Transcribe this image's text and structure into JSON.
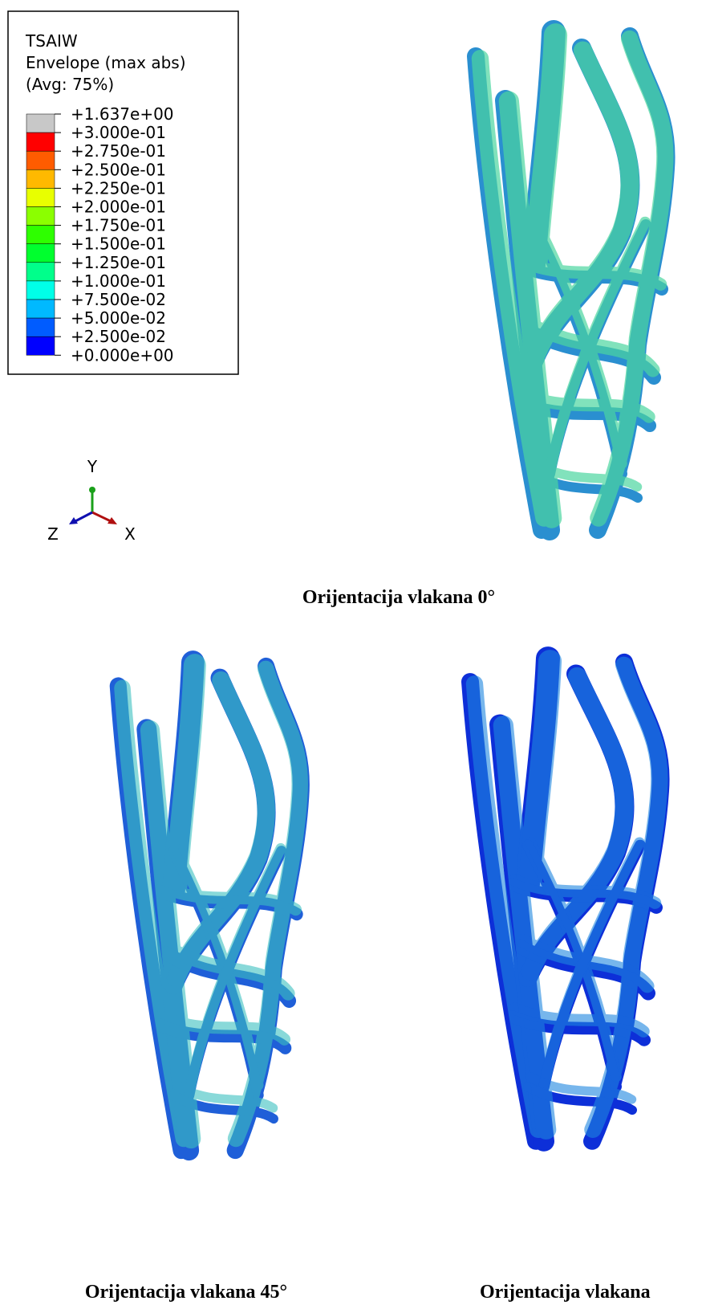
{
  "legend": {
    "title_lines": [
      "TSAIW",
      "Envelope (max abs)",
      "(Avg: 75%)"
    ],
    "labels": [
      "+1.637e+00",
      "+3.000e-01",
      "+2.750e-01",
      "+2.500e-01",
      "+2.250e-01",
      "+2.000e-01",
      "+1.750e-01",
      "+1.500e-01",
      "+1.250e-01",
      "+1.000e-01",
      "+7.500e-02",
      "+5.000e-02",
      "+2.500e-02",
      "+0.000e+00"
    ],
    "colors": [
      "#c8c8c8",
      "#ff0000",
      "#ff5c00",
      "#ffb900",
      "#e8ff00",
      "#8bff00",
      "#2eff00",
      "#00ff2e",
      "#00ff8b",
      "#00ffe8",
      "#00b9ff",
      "#005cff",
      "#0000ff"
    ]
  },
  "triad": {
    "y": "Y",
    "z": "Z",
    "x": "X"
  },
  "captions": [
    "Orijentacija vlakana 0°",
    "Orijentacija vlakana 45°",
    "Orijentacija vlakana"
  ]
}
